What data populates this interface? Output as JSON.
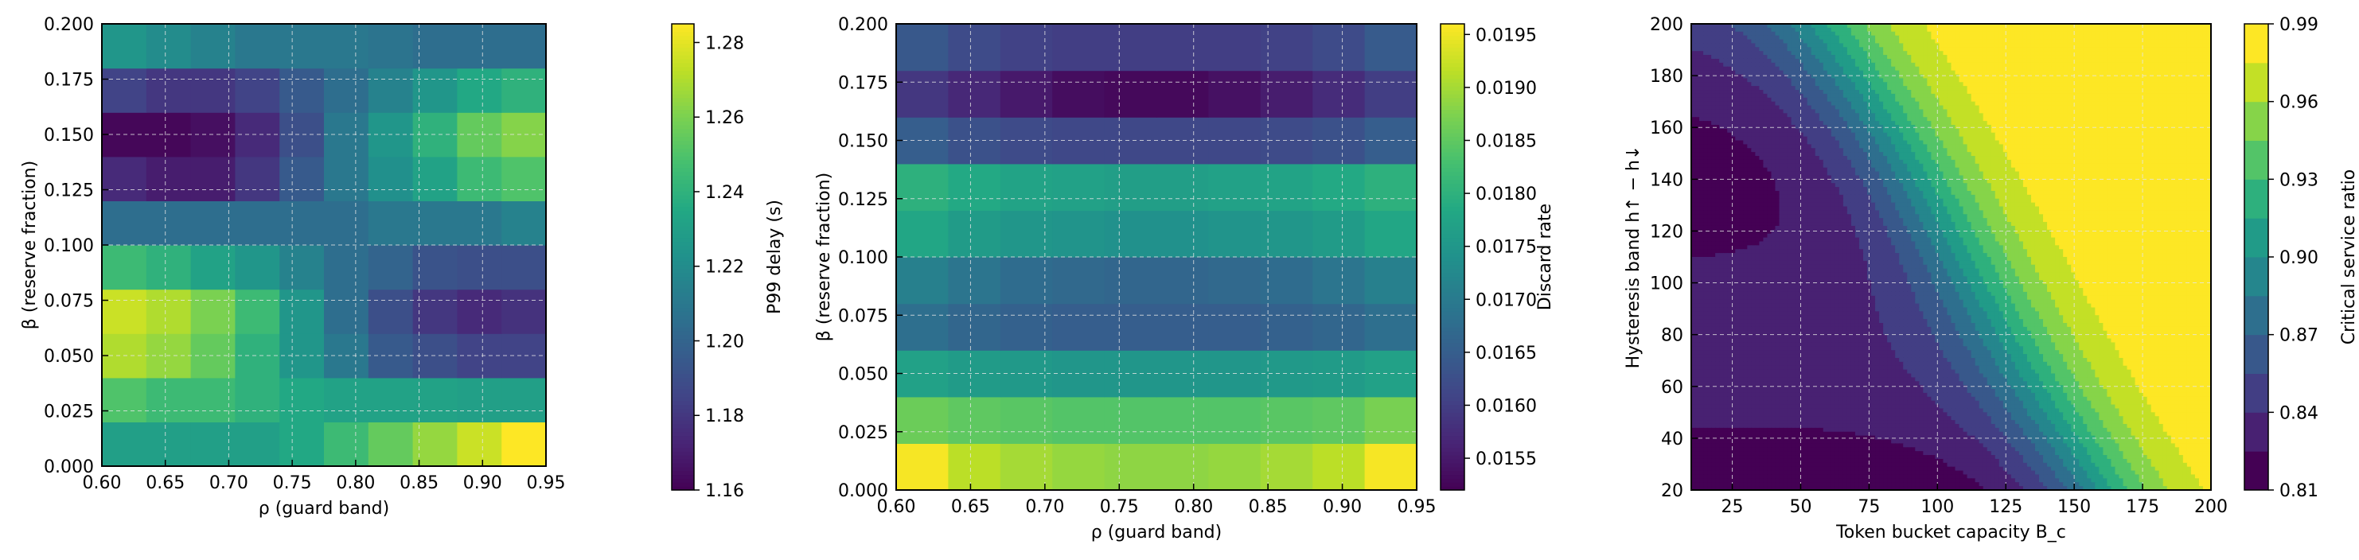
{
  "chart_data": [
    {
      "type": "heatmap",
      "xlabel": "ρ (guard band)",
      "ylabel": "β (reserve fraction)",
      "colorbar_label": "P99 delay (s)",
      "colormap": "viridis",
      "xlim": [
        0.6,
        0.95
      ],
      "ylim": [
        0.0,
        0.2
      ],
      "x_ticks": [
        "0.60",
        "0.65",
        "0.70",
        "0.75",
        "0.80",
        "0.85",
        "0.90",
        "0.95"
      ],
      "y_ticks": [
        "0.000",
        "0.025",
        "0.050",
        "0.075",
        "0.100",
        "0.125",
        "0.150",
        "0.175",
        "0.200"
      ],
      "colorbar_ticks": [
        "1.16",
        "1.18",
        "1.20",
        "1.22",
        "1.24",
        "1.26",
        "1.28"
      ],
      "vmin": 1.16,
      "vmax": 1.285,
      "grid": true,
      "cols": 10,
      "rows": 10,
      "values": [
        [
          1.23,
          1.23,
          1.23,
          1.23,
          1.235,
          1.245,
          1.255,
          1.265,
          1.275,
          1.285
        ],
        [
          1.25,
          1.245,
          1.245,
          1.24,
          1.235,
          1.232,
          1.232,
          1.232,
          1.23,
          1.23
        ],
        [
          1.27,
          1.265,
          1.255,
          1.24,
          1.225,
          1.21,
          1.195,
          1.19,
          1.185,
          1.185
        ],
        [
          1.275,
          1.27,
          1.26,
          1.245,
          1.225,
          1.205,
          1.19,
          1.18,
          1.175,
          1.178
        ],
        [
          1.245,
          1.24,
          1.232,
          1.225,
          1.215,
          1.205,
          1.2,
          1.192,
          1.19,
          1.19
        ],
        [
          1.205,
          1.205,
          1.205,
          1.205,
          1.205,
          1.205,
          1.21,
          1.21,
          1.21,
          1.215
        ],
        [
          1.175,
          1.17,
          1.17,
          1.18,
          1.195,
          1.21,
          1.222,
          1.232,
          1.245,
          1.25
        ],
        [
          1.162,
          1.162,
          1.165,
          1.175,
          1.19,
          1.21,
          1.225,
          1.24,
          1.255,
          1.262
        ],
        [
          1.185,
          1.18,
          1.18,
          1.185,
          1.195,
          1.205,
          1.215,
          1.225,
          1.235,
          1.24
        ],
        [
          1.225,
          1.22,
          1.215,
          1.21,
          1.21,
          1.21,
          1.208,
          1.205,
          1.205,
          1.205
        ]
      ]
    },
    {
      "type": "heatmap",
      "xlabel": "ρ (guard band)",
      "ylabel": "β (reserve fraction)",
      "colorbar_label": "Discard rate",
      "colormap": "viridis",
      "xlim": [
        0.6,
        0.95
      ],
      "ylim": [
        0.0,
        0.2
      ],
      "x_ticks": [
        "0.60",
        "0.65",
        "0.70",
        "0.75",
        "0.80",
        "0.85",
        "0.90",
        "0.95"
      ],
      "y_ticks": [
        "0.000",
        "0.025",
        "0.050",
        "0.075",
        "0.100",
        "0.125",
        "0.150",
        "0.175",
        "0.200"
      ],
      "colorbar_ticks": [
        "0.0155",
        "0.0160",
        "0.0165",
        "0.0170",
        "0.0175",
        "0.0180",
        "0.0185",
        "0.0190",
        "0.0195"
      ],
      "vmin": 0.0152,
      "vmax": 0.0196,
      "grid": true,
      "cols": 10,
      "rows": 10,
      "values": [
        [
          0.01955,
          0.01915,
          0.019,
          0.0189,
          0.01885,
          0.01885,
          0.0189,
          0.019,
          0.01915,
          0.01955
        ],
        [
          0.0186,
          0.0185,
          0.01845,
          0.0184,
          0.0184,
          0.0184,
          0.0184,
          0.01845,
          0.0185,
          0.0187
        ],
        [
          0.0177,
          0.0176,
          0.01755,
          0.0175,
          0.0175,
          0.0175,
          0.0175,
          0.01755,
          0.0176,
          0.0177
        ],
        [
          0.0168,
          0.01665,
          0.01655,
          0.0165,
          0.0165,
          0.0165,
          0.0165,
          0.01655,
          0.01665,
          0.0168
        ],
        [
          0.0171,
          0.0169,
          0.01675,
          0.0167,
          0.01665,
          0.01665,
          0.0167,
          0.01675,
          0.0169,
          0.0171
        ],
        [
          0.0178,
          0.0176,
          0.0175,
          0.01745,
          0.0174,
          0.0174,
          0.01745,
          0.0175,
          0.0176,
          0.0178
        ],
        [
          0.018,
          0.01785,
          0.01775,
          0.0177,
          0.01765,
          0.01765,
          0.0177,
          0.01775,
          0.01785,
          0.018
        ],
        [
          0.0165,
          0.0163,
          0.0162,
          0.01615,
          0.01615,
          0.01615,
          0.01615,
          0.0162,
          0.0163,
          0.0165
        ],
        [
          0.0159,
          0.0157,
          0.0155,
          0.01535,
          0.0153,
          0.0153,
          0.0154,
          0.01555,
          0.01575,
          0.016
        ],
        [
          0.0164,
          0.0162,
          0.01605,
          0.016,
          0.016,
          0.016,
          0.016,
          0.01605,
          0.0162,
          0.01645
        ]
      ]
    },
    {
      "type": "contour",
      "xlabel": "Token bucket capacity B_c",
      "ylabel": "Hysteresis band h↑ − h↓",
      "colorbar_label": "Critical service ratio",
      "colormap": "viridis",
      "xlim": [
        10,
        200
      ],
      "ylim": [
        20,
        200
      ],
      "x_ticks": [
        "25",
        "50",
        "75",
        "100",
        "125",
        "150",
        "175",
        "200"
      ],
      "y_ticks": [
        "20",
        "40",
        "60",
        "80",
        "100",
        "120",
        "140",
        "160",
        "180",
        "200"
      ],
      "colorbar_ticks": [
        "0.81",
        "0.84",
        "0.87",
        "0.90",
        "0.93",
        "0.96",
        "0.99"
      ],
      "levels": [
        0.81,
        0.825,
        0.84,
        0.855,
        0.87,
        0.885,
        0.9,
        0.915,
        0.93,
        0.945,
        0.96,
        0.975,
        0.99
      ],
      "grid": true
    }
  ]
}
